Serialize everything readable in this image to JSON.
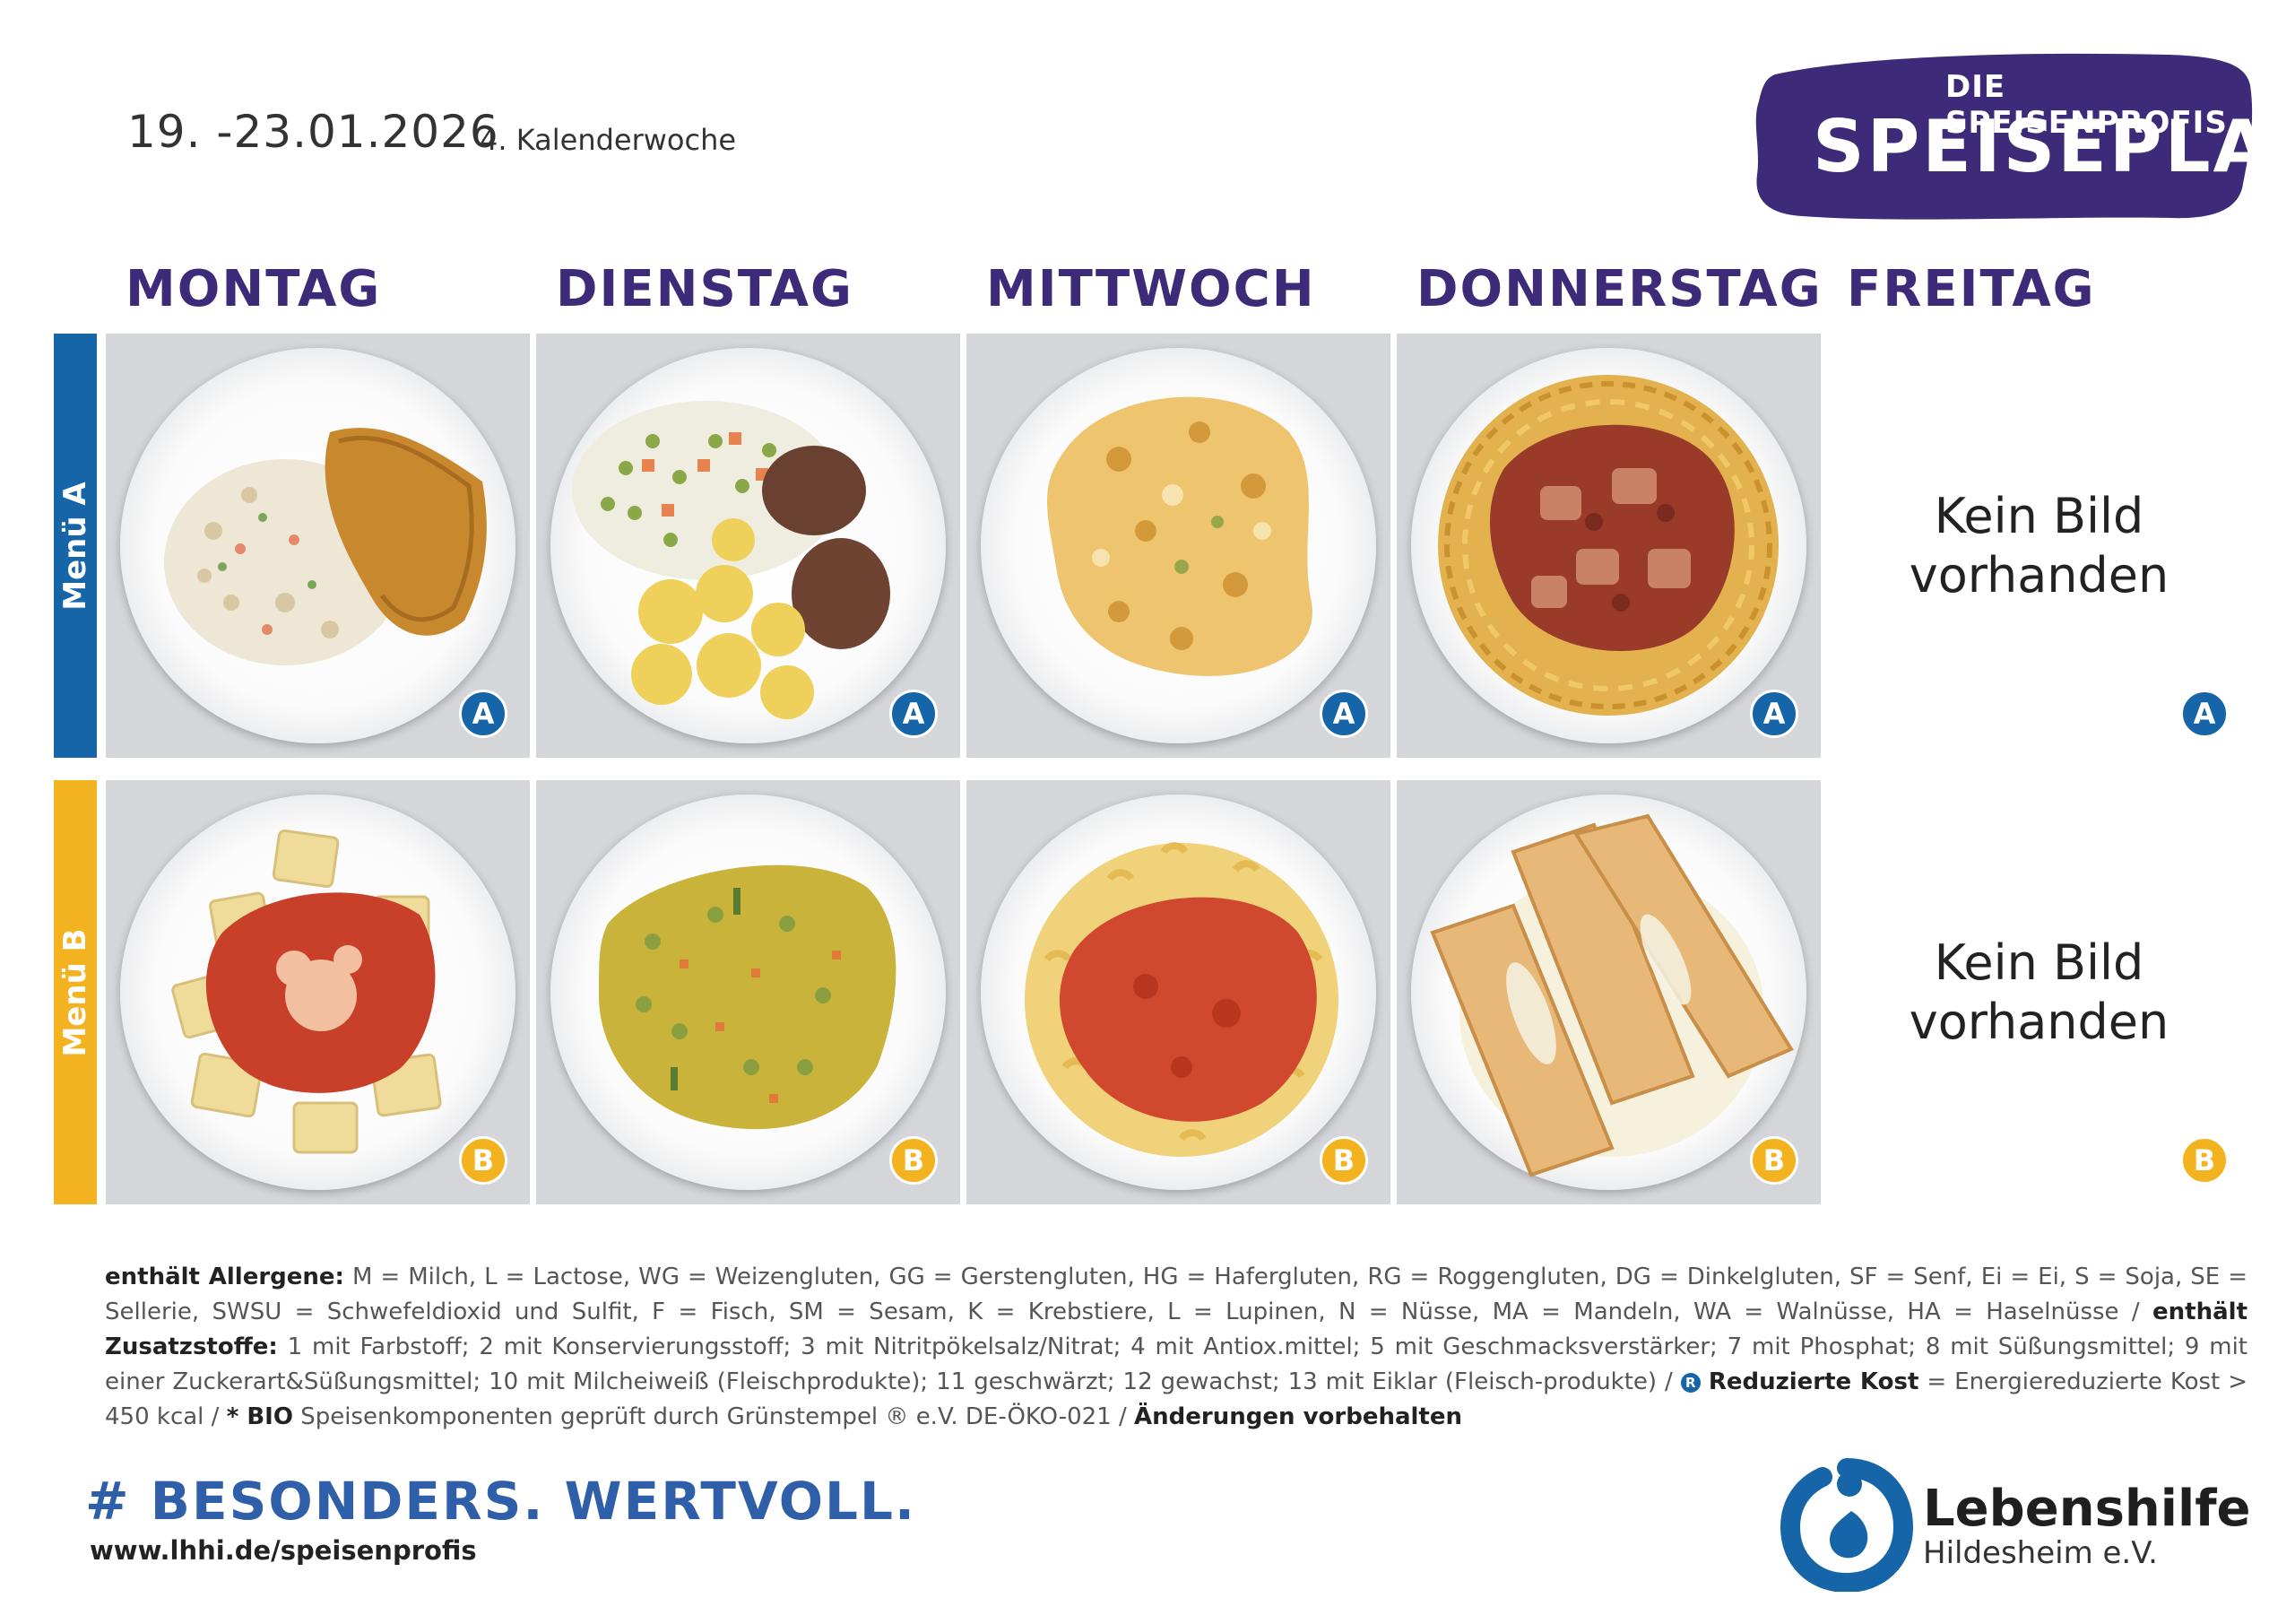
{
  "header": {
    "date_range": "19. -23.01.2026",
    "week": "4. Kalenderwoche",
    "brand_sub": "DIE SPEISENPROFIS",
    "brand_main": "SPEISEPLAN"
  },
  "days": [
    "MONTAG",
    "DIENSTAG",
    "MITTWOCH",
    "DONNERSTAG",
    "FREITAG"
  ],
  "menus": {
    "a_label": "Menü A",
    "b_label": "Menü B",
    "a_badge": "A",
    "b_badge": "B",
    "no_image": "Kein Bild vorhanden",
    "a_color": "#1565a8",
    "b_color": "#f3b321"
  },
  "legend": {
    "allergens_label": "enthält Allergene:",
    "allergens_text": " M = Milch, L = Lactose, WG = Weizengluten, GG = Gerstengluten, HG = Hafergluten, RG = Roggengluten, DG = Dinkelgluten, SF = Senf, Ei = Ei, S = Soja, SE = Sellerie, SWSU = Schwefeldioxid und Sulfit, F = Fisch, SM = Sesam, K = Krebstiere, L = Lupinen, N = Nüsse, MA = Mandeln, WA = Walnüsse, HA =  Haselnüsse / ",
    "additives_label": "enthält Zusatzstoffe:",
    "additives_text": " 1 mit Farbstoff; 2 mit Konservierungsstoff; 3 mit Nitritpökelsalz/Nitrat; 4 mit Antiox.mittel; 5 mit Geschmacksverstärker; 7 mit Phosphat; 8 mit Süßungsmittel; 9 mit einer Zuckerart&Süßungsmittel; 10 mit Milcheiweiß (Fleischprodukte); 11 geschwärzt; 12 gewachst; 13 mit Eiklar (Fleisch-produkte) / ",
    "rk_symbol": "R",
    "reduced_label": "Reduzierte Kost",
    "reduced_text": " = Energiereduzierte Kost > 450 kcal / ",
    "bio_label": "* BIO",
    "bio_text": " Speisenkomponenten geprüft durch Grünstempel ® e.V. DE-ÖKO-021 / ",
    "changes_label": "Änderungen vorbehalten"
  },
  "footer": {
    "hashtag": "# BESONDERS. WERTVOLL.",
    "url": "www.lhhi.de/speisenprofis",
    "org_name": "Lebenshilfe",
    "org_sub": "Hildesheim e.V."
  }
}
